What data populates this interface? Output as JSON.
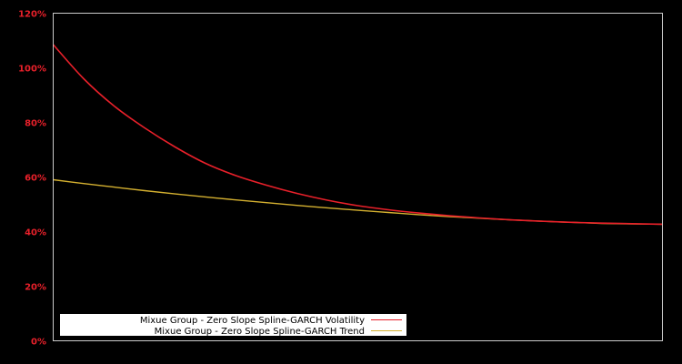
{
  "chart_data": {
    "type": "line",
    "title": "",
    "xlabel": "",
    "ylabel": "",
    "ylim": [
      0,
      120
    ],
    "y_ticks": [
      "0%",
      "20%",
      "40%",
      "60%",
      "80%",
      "100%",
      "120%"
    ],
    "y_tick_values": [
      0,
      20,
      40,
      60,
      80,
      100,
      120
    ],
    "grid": false,
    "legend_position": "lower left",
    "x": [
      0,
      0.05,
      0.1,
      0.15,
      0.2,
      0.25,
      0.3,
      0.35,
      0.4,
      0.45,
      0.5,
      0.55,
      0.6,
      0.65,
      0.7,
      0.75,
      0.8,
      0.85,
      0.9,
      0.95,
      1.0
    ],
    "series": [
      {
        "name": "Mixue Group - Zero Slope Spline-GARCH Volatility",
        "color": "#e8202a",
        "values": [
          108.5,
          96,
          86,
          78,
          71,
          65,
          60.5,
          57,
          54,
          51.5,
          49.5,
          48,
          46.8,
          45.8,
          45,
          44.3,
          43.8,
          43.4,
          43.1,
          42.9,
          42.7
        ]
      },
      {
        "name": "Mixue Group - Zero Slope Spline-GARCH Trend",
        "color": "#d4b030",
        "values": [
          59,
          57.6,
          56.3,
          55,
          53.8,
          52.7,
          51.6,
          50.6,
          49.6,
          48.7,
          47.8,
          47,
          46.2,
          45.5,
          44.9,
          44.3,
          43.8,
          43.4,
          43.0,
          42.8,
          42.7
        ]
      }
    ]
  },
  "plot": {
    "background": "#000000",
    "frame_color": "#cccccc",
    "tick_color": "#e8202a"
  },
  "legend": {
    "items": [
      {
        "label": "Mixue Group - Zero Slope Spline-GARCH Volatility",
        "color": "#e8202a"
      },
      {
        "label": "Mixue Group - Zero Slope Spline-GARCH Trend",
        "color": "#d4b030"
      }
    ]
  }
}
